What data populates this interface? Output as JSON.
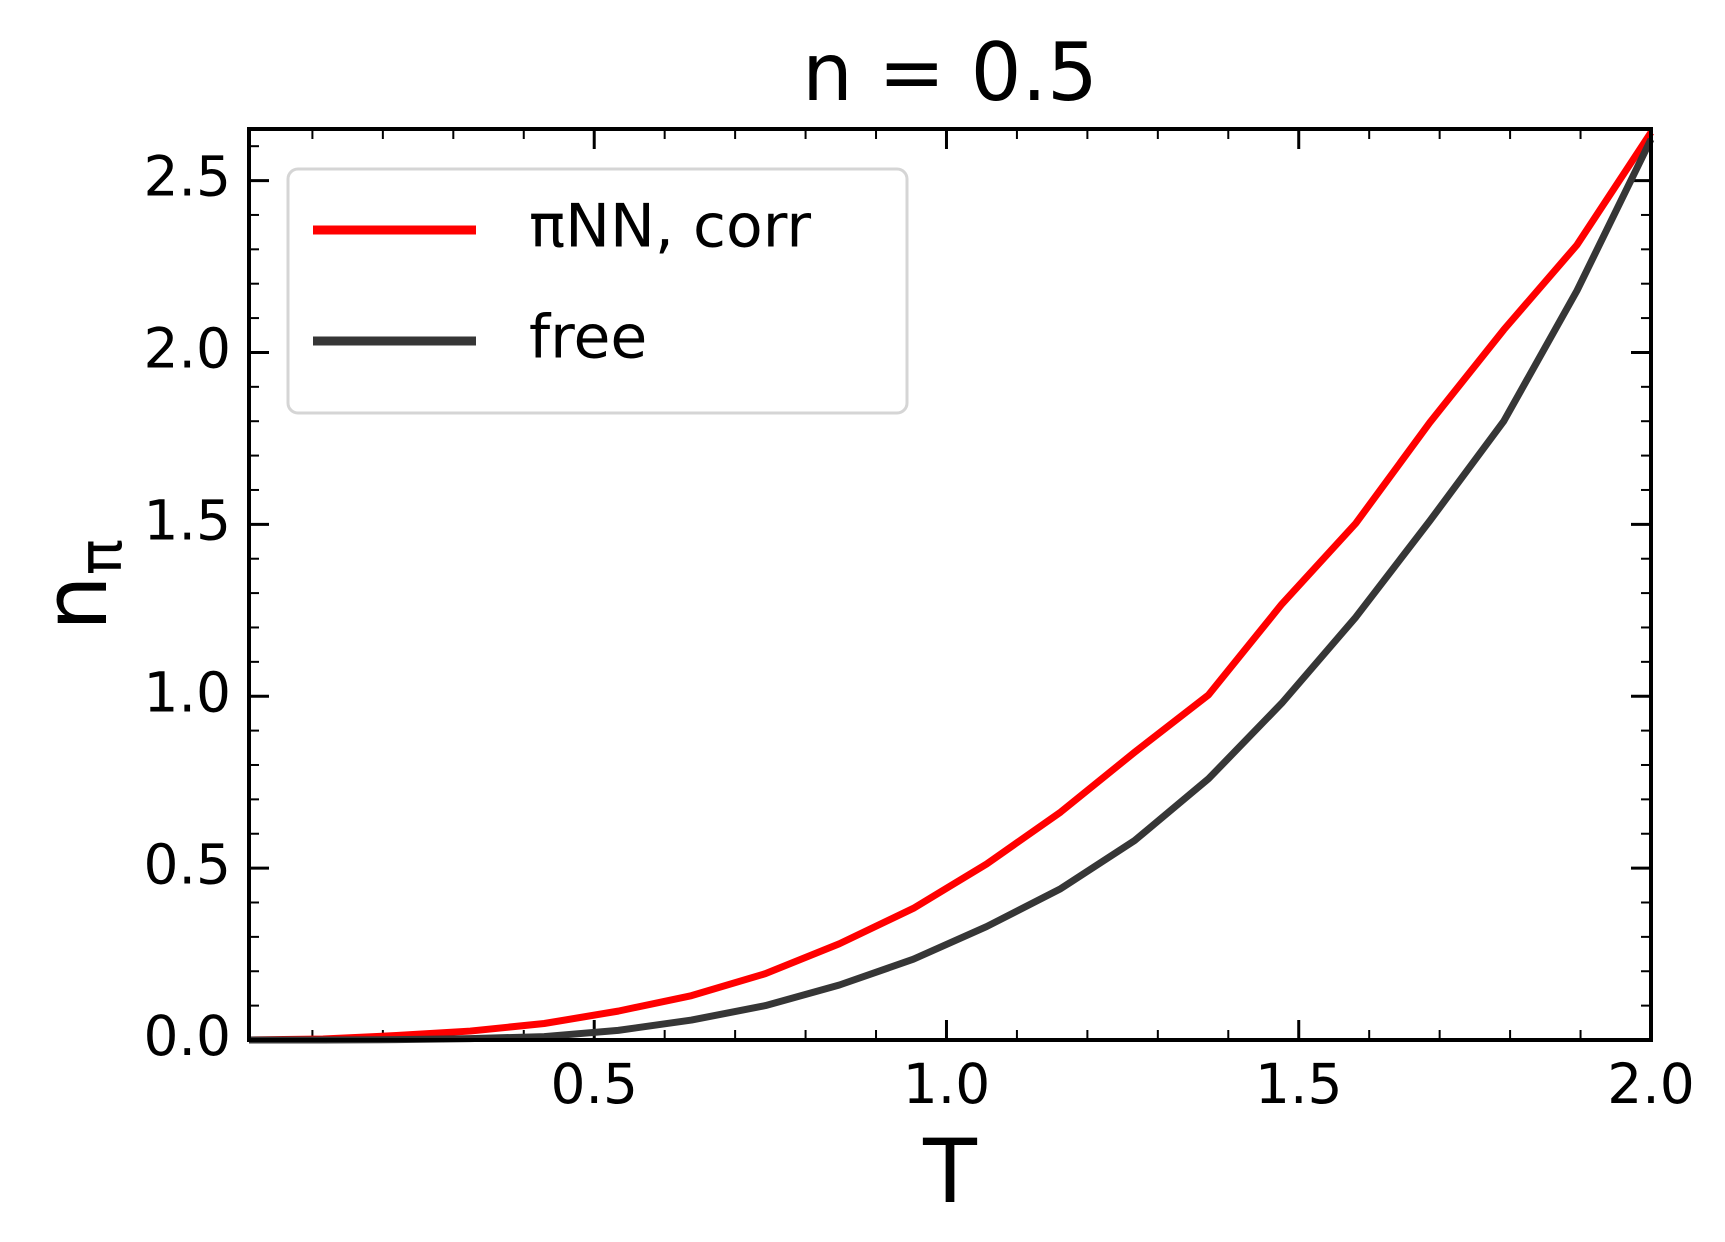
{
  "chart_data": {
    "type": "line",
    "title": "n = 0.5",
    "xlabel": "T",
    "ylabel": "n",
    "ylabel_subscript": "π",
    "x": [
      0.01,
      0.115,
      0.219,
      0.324,
      0.429,
      0.534,
      0.638,
      0.743,
      0.848,
      0.953,
      1.057,
      1.162,
      1.267,
      1.372,
      1.476,
      1.581,
      1.686,
      1.791,
      1.895,
      2.0
    ],
    "series": [
      {
        "name": "πNN, corr",
        "color": "#ff0000",
        "values": [
          0,
          0.003,
          0.013,
          0.026,
          0.048,
          0.084,
          0.129,
          0.193,
          0.28,
          0.383,
          0.512,
          0.663,
          0.837,
          1.004,
          1.268,
          1.503,
          1.796,
          2.066,
          2.313,
          2.64
        ]
      },
      {
        "name": "free",
        "color": "#363636",
        "values": [
          0,
          0.0001,
          0.001,
          0.004,
          0.01,
          0.028,
          0.058,
          0.1,
          0.16,
          0.235,
          0.33,
          0.44,
          0.58,
          0.76,
          0.98,
          1.23,
          1.51,
          1.8,
          2.18,
          2.62
        ]
      }
    ],
    "xlim": [
      0.01,
      2.0
    ],
    "ylim": [
      0,
      2.65
    ],
    "xticks": [
      0.5,
      {
        "value": 1.0,
        "label": "1.0"
      },
      1.5,
      {
        "value": 2.0,
        "label": "2.0"
      }
    ],
    "yticks": [
      {
        "value": 0,
        "label": "0.0"
      },
      0.5,
      {
        "value": 1.0,
        "label": "1.0"
      },
      1.5,
      {
        "value": 2.0,
        "label": "2.0"
      },
      2.5
    ],
    "xminorticks": [
      0.1,
      0.2,
      0.3,
      0.4,
      0.6,
      0.7,
      0.8,
      0.9,
      1.1,
      1.2,
      1.3,
      1.4,
      1.6,
      1.7,
      1.8,
      1.9
    ],
    "yminorticks": [
      0.1,
      0.2,
      0.3,
      0.4,
      0.6,
      0.7,
      0.8,
      0.9,
      1.1,
      1.2,
      1.3,
      1.4,
      1.6,
      1.7,
      1.8,
      1.9,
      2.1,
      2.2,
      2.3,
      2.4,
      2.6
    ],
    "legend": "upper left",
    "grid": false
  }
}
